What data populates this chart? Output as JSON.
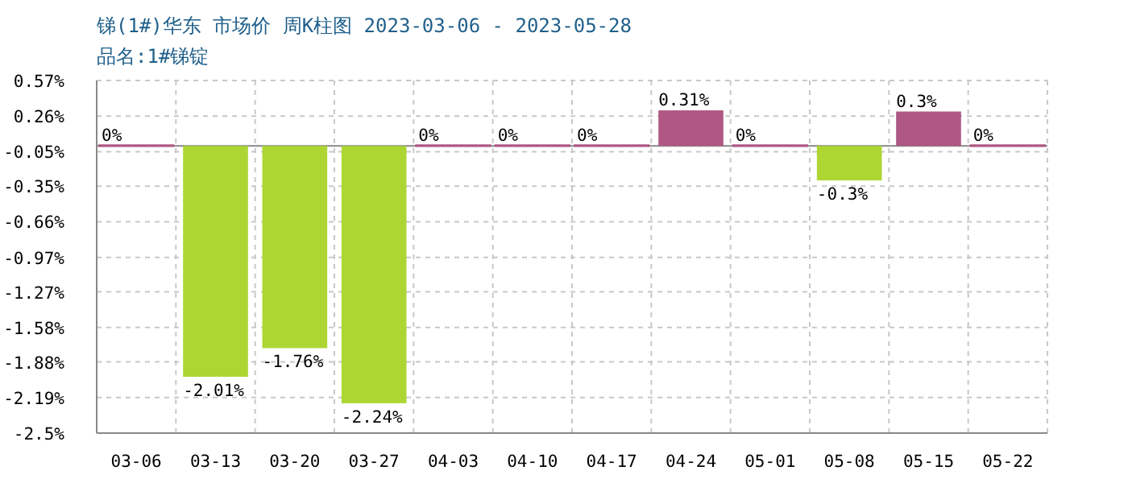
{
  "chart_data": {
    "type": "bar",
    "title": "锑(1#)华东 市场价 周K柱图 2023-03-06 - 2023-05-28",
    "subtitle": "品名:1#锑锭",
    "categories": [
      "03-06",
      "03-13",
      "03-20",
      "03-27",
      "04-03",
      "04-10",
      "04-17",
      "04-24",
      "05-01",
      "05-08",
      "05-15",
      "05-22"
    ],
    "values": [
      0,
      -2.01,
      -1.76,
      -2.24,
      0,
      0,
      0,
      0.31,
      0,
      -0.3,
      0.3,
      0
    ],
    "colors": [
      "#ae5883",
      "#add633",
      "#add633",
      "#add633",
      "#ae5883",
      "#ae5883",
      "#ae5883",
      "#ae5883",
      "#ae5883",
      "#add633",
      "#ae5883",
      "#ae5883"
    ],
    "value_labels": [
      "0%",
      "-2.01%",
      "-1.76%",
      "-2.24%",
      "0%",
      "0%",
      "0%",
      "0.31%",
      "0%",
      "-0.3%",
      "0.3%",
      "0%"
    ],
    "ylim": [
      -2.5,
      0.57
    ],
    "yticks": [
      {
        "value": 0.57,
        "label": "0.57%"
      },
      {
        "value": 0.26,
        "label": "0.26%"
      },
      {
        "value": -0.05,
        "label": "-0.05%"
      },
      {
        "value": -0.35,
        "label": "-0.35%"
      },
      {
        "value": -0.66,
        "label": "-0.66%"
      },
      {
        "value": -0.97,
        "label": "-0.97%"
      },
      {
        "value": -1.27,
        "label": "-1.27%"
      },
      {
        "value": -1.58,
        "label": "-1.58%"
      },
      {
        "value": -1.88,
        "label": "-1.88%"
      },
      {
        "value": -2.19,
        "label": "-2.19%"
      },
      {
        "value": -2.5,
        "label": "-2.5%"
      }
    ],
    "grid": true
  }
}
